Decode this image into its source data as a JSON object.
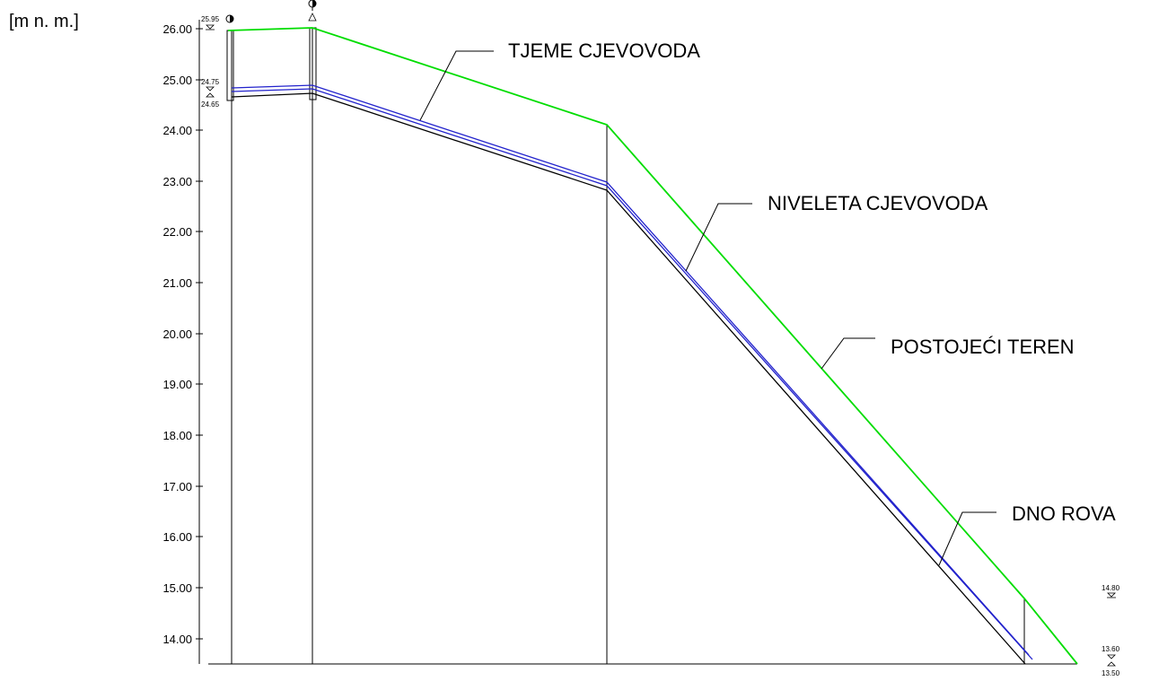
{
  "y_axis": {
    "unit_label": "[m n. m.]",
    "ticks": [
      "26.00",
      "25.00",
      "24.00",
      "23.00",
      "22.00",
      "21.00",
      "20.00",
      "19.00",
      "18.00",
      "17.00",
      "16.00",
      "15.00",
      "14.00"
    ]
  },
  "callouts": {
    "tjeme": "TJEME CJEVOVODA",
    "niveleta": "NIVELETA CJEVOVODA",
    "teren": "POSTOJEĆI TEREN",
    "dno": "DNO ROVA"
  },
  "elevation_labels": {
    "start_terrain": "25.95",
    "start_top": "24.75",
    "start_bottom": "24.65",
    "end_terrain": "14.80",
    "end_top": "13.60",
    "end_bottom": "13.50"
  },
  "colors": {
    "terrain": "#00dd00",
    "pipe": "#2222cc",
    "trench": "#000000"
  },
  "chart_data": {
    "type": "line",
    "ylabel": "[m n. m.]",
    "ylim": [
      13.5,
      26.0
    ],
    "series": [
      {
        "name": "POSTOJEĆI TEREN",
        "values": [
          25.95,
          26.0,
          24.1,
          14.8,
          13.5
        ]
      },
      {
        "name": "TJEME CJEVOVODA",
        "values": [
          24.85,
          24.9,
          22.95,
          13.6
        ]
      },
      {
        "name": "NIVELETA CJEVOVODA",
        "values": [
          24.75,
          24.8,
          22.85,
          13.5
        ]
      },
      {
        "name": "DNO ROVA",
        "values": [
          24.65,
          24.7,
          22.75,
          13.4
        ]
      }
    ]
  }
}
